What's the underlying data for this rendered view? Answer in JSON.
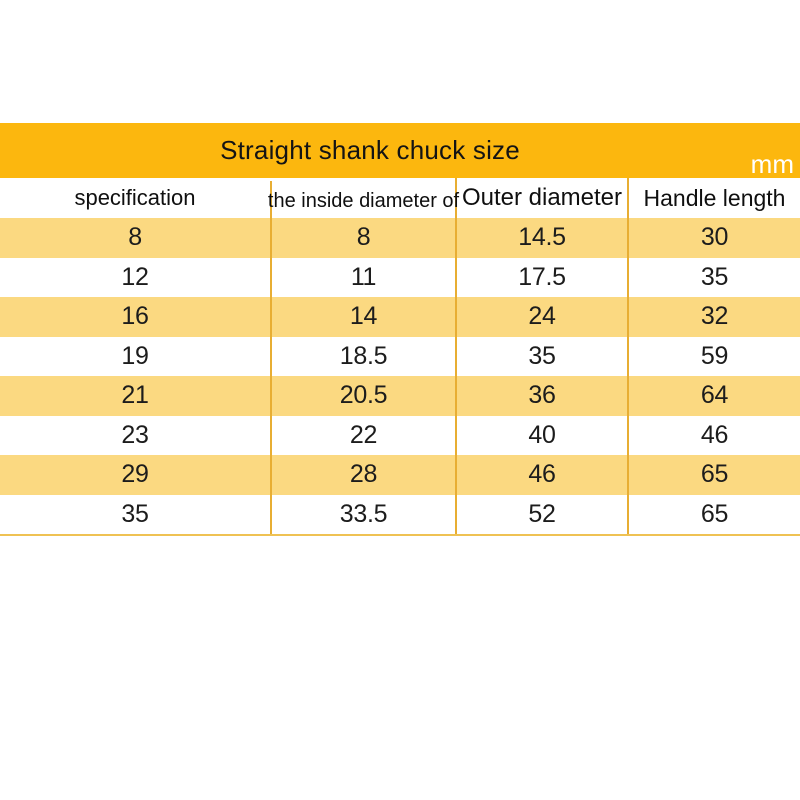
{
  "unit_label": "mm",
  "chart_data": {
    "type": "table",
    "title": "Straight shank chuck size",
    "unit": "mm",
    "columns": [
      "specification",
      "the inside diameter of",
      "Outer diameter",
      "Handle length"
    ],
    "rows": [
      [
        "8",
        "8",
        "14.5",
        "30"
      ],
      [
        "12",
        "11",
        "17.5",
        "35"
      ],
      [
        "16",
        "14",
        "24",
        "32"
      ],
      [
        "19",
        "18.5",
        "35",
        "59"
      ],
      [
        "21",
        "20.5",
        "36",
        "64"
      ],
      [
        "23",
        "22",
        "40",
        "46"
      ],
      [
        "29",
        "28",
        "46",
        "65"
      ],
      [
        "35",
        "33.5",
        "52",
        "65"
      ]
    ]
  },
  "colors": {
    "band_orange": "#fcb70e",
    "row_yellow": "#fbd981",
    "divider_gold": "#e8ae33",
    "bottom_line": "#efc253",
    "title_text": "#141414",
    "unit_text": "#ffffff"
  }
}
